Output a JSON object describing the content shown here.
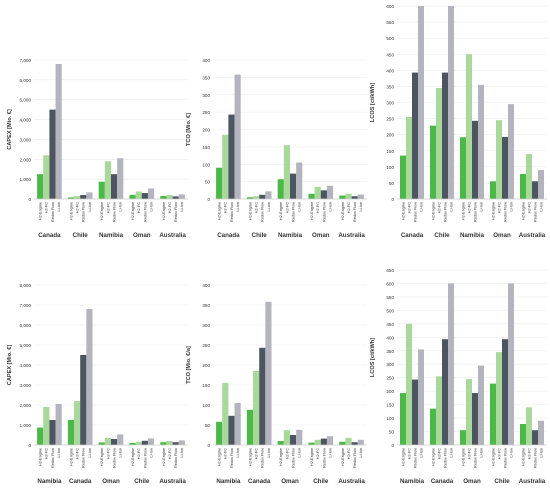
{
  "colors": {
    "h2_engine": "#4cb848",
    "h2_fc": "#a8d89a",
    "redox_flow": "#4d5660",
    "li_ion": "#b3b4bd",
    "axis": "#cccccc",
    "grid": "#ebebeb",
    "text": "#333333"
  },
  "series_names": [
    "H2-Engine",
    "H2-FC",
    "Redox Flow",
    "Li-Ion"
  ],
  "chart_data": [
    {
      "type": "bar",
      "ylabel": "CAPEX [Mio. €]",
      "ylim": [
        0,
        7000
      ],
      "yticks": [
        0,
        1000,
        2000,
        3000,
        4000,
        5000,
        6000,
        7000
      ],
      "ytick_labels": [
        "0",
        "1,000",
        "2,000",
        "3,000",
        "4,000",
        "5,000",
        "6,000",
        "7,000"
      ],
      "categories": [
        "Canada",
        "Chile",
        "Namibia",
        "Oman",
        "Australia"
      ],
      "series": [
        {
          "name": "H2-Engine",
          "values": [
            1250,
            80,
            870,
            210,
            150
          ]
        },
        {
          "name": "H2-FC",
          "values": [
            2200,
            150,
            1900,
            380,
            200
          ]
        },
        {
          "name": "Redox Flow",
          "values": [
            4500,
            200,
            1250,
            300,
            130
          ]
        },
        {
          "name": "Li-Ion",
          "values": [
            6800,
            330,
            2050,
            530,
            230
          ]
        }
      ]
    },
    {
      "type": "bar",
      "ylabel": "TCO [Mio. €]",
      "ylim": [
        0,
        400
      ],
      "yticks": [
        0,
        50,
        100,
        150,
        200,
        250,
        300,
        350,
        400
      ],
      "ytick_labels": [
        "0",
        "50",
        "100",
        "150",
        "200",
        "250",
        "300",
        "350",
        "400"
      ],
      "categories": [
        "Canada",
        "Chile",
        "Namibia",
        "Oman",
        "Australia"
      ],
      "series": [
        {
          "name": "H2-Engine",
          "values": [
            90,
            5,
            57,
            15,
            10
          ]
        },
        {
          "name": "H2-FC",
          "values": [
            185,
            8,
            155,
            35,
            15
          ]
        },
        {
          "name": "Redox Flow",
          "values": [
            243,
            12,
            73,
            25,
            8
          ]
        },
        {
          "name": "Li-Ion",
          "values": [
            358,
            22,
            105,
            38,
            13
          ]
        }
      ]
    },
    {
      "type": "bar",
      "ylabel": "LCOS [ct/kWh]",
      "ylim": [
        0,
        600
      ],
      "yticks": [
        0,
        50,
        100,
        150,
        200,
        250,
        300,
        350,
        400,
        450,
        500,
        550,
        600
      ],
      "ytick_labels": [
        "0",
        "50",
        "100",
        "150",
        "200",
        "250",
        "300",
        "350",
        "400",
        "450",
        "500",
        "550",
        "600"
      ],
      "categories": [
        "Canada",
        "Chile",
        "Namibia",
        "Oman",
        "Australia"
      ],
      "series": [
        {
          "name": "H2-Engine",
          "values": [
            135,
            228,
            192,
            55,
            78
          ]
        },
        {
          "name": "H2-FC",
          "values": [
            255,
            345,
            450,
            245,
            140
          ]
        },
        {
          "name": "Redox Flow",
          "values": [
            393,
            393,
            243,
            193,
            55
          ]
        },
        {
          "name": "Li-Ion",
          "values": [
            600,
            600,
            355,
            295,
            90
          ]
        }
      ]
    },
    {
      "type": "bar",
      "ylabel": "CAPEX [Mio. €]",
      "ylim": [
        0,
        8000
      ],
      "yticks": [
        0,
        1000,
        2000,
        3000,
        4000,
        5000,
        6000,
        7000,
        8000
      ],
      "ytick_labels": [
        "0",
        "1,000",
        "2,000",
        "3,000",
        "4,000",
        "5,000",
        "6,000",
        "7,000",
        "8,000"
      ],
      "categories": [
        "Namibia",
        "Canada",
        "Oman",
        "Chile",
        "Australia"
      ],
      "series": [
        {
          "name": "H2-Engine",
          "values": [
            870,
            1250,
            130,
            100,
            140
          ]
        },
        {
          "name": "H2-FC",
          "values": [
            1900,
            2200,
            360,
            160,
            200
          ]
        },
        {
          "name": "Redox Flow",
          "values": [
            1250,
            4500,
            300,
            210,
            140
          ]
        },
        {
          "name": "Li-Ion",
          "values": [
            2050,
            6800,
            530,
            330,
            230
          ]
        }
      ]
    },
    {
      "type": "bar",
      "ylabel": "TCO [Mio. €/a]",
      "ylim": [
        0,
        400
      ],
      "yticks": [
        0,
        50,
        100,
        150,
        200,
        250,
        300,
        350,
        400
      ],
      "ytick_labels": [
        "0",
        "50",
        "100",
        "150",
        "200",
        "250",
        "300",
        "350",
        "400"
      ],
      "categories": [
        "Namibia",
        "Canada",
        "Oman",
        "Chile",
        "Australia"
      ],
      "series": [
        {
          "name": "H2-Engine",
          "values": [
            58,
            88,
            10,
            6,
            8
          ]
        },
        {
          "name": "H2-FC",
          "values": [
            155,
            185,
            37,
            13,
            18
          ]
        },
        {
          "name": "Redox Flow",
          "values": [
            73,
            243,
            25,
            16,
            7
          ]
        },
        {
          "name": "Li-Ion",
          "values": [
            105,
            358,
            38,
            22,
            13
          ]
        }
      ]
    },
    {
      "type": "bar",
      "ylabel": "LCOS [ct/kWh]",
      "ylim": [
        0,
        650
      ],
      "yticks": [
        0,
        50,
        100,
        150,
        200,
        250,
        300,
        350,
        400,
        450,
        500,
        550,
        600,
        650
      ],
      "ytick_labels": [
        "0",
        "50",
        "100",
        "150",
        "200",
        "250",
        "300",
        "350",
        "400",
        "450",
        "500",
        "550",
        "600",
        "650"
      ],
      "categories": [
        "Namibia",
        "Canada",
        "Oman",
        "Chile",
        "Australia"
      ],
      "series": [
        {
          "name": "H2-Engine",
          "values": [
            193,
            135,
            55,
            228,
            78
          ]
        },
        {
          "name": "H2-FC",
          "values": [
            450,
            255,
            245,
            345,
            140
          ]
        },
        {
          "name": "Redox Flow",
          "values": [
            243,
            393,
            193,
            393,
            55
          ]
        },
        {
          "name": "Li-Ion",
          "values": [
            355,
            600,
            295,
            600,
            90
          ]
        }
      ]
    }
  ]
}
